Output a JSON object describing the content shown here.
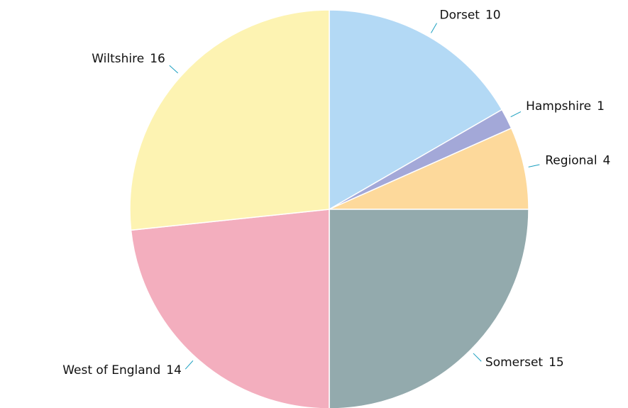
{
  "chart_data": {
    "type": "pie",
    "categories": [
      "Dorset",
      "Hampshire",
      "Regional",
      "Somerset",
      "West of England",
      "Wiltshire"
    ],
    "values": [
      10,
      1,
      4,
      15,
      14,
      16
    ],
    "colors": [
      "#b3d9f5",
      "#a3a8d8",
      "#fdd99b",
      "#93aaad",
      "#f3aebe",
      "#fdf3b2"
    ],
    "start_angle": 0,
    "direction": "clockwise"
  }
}
